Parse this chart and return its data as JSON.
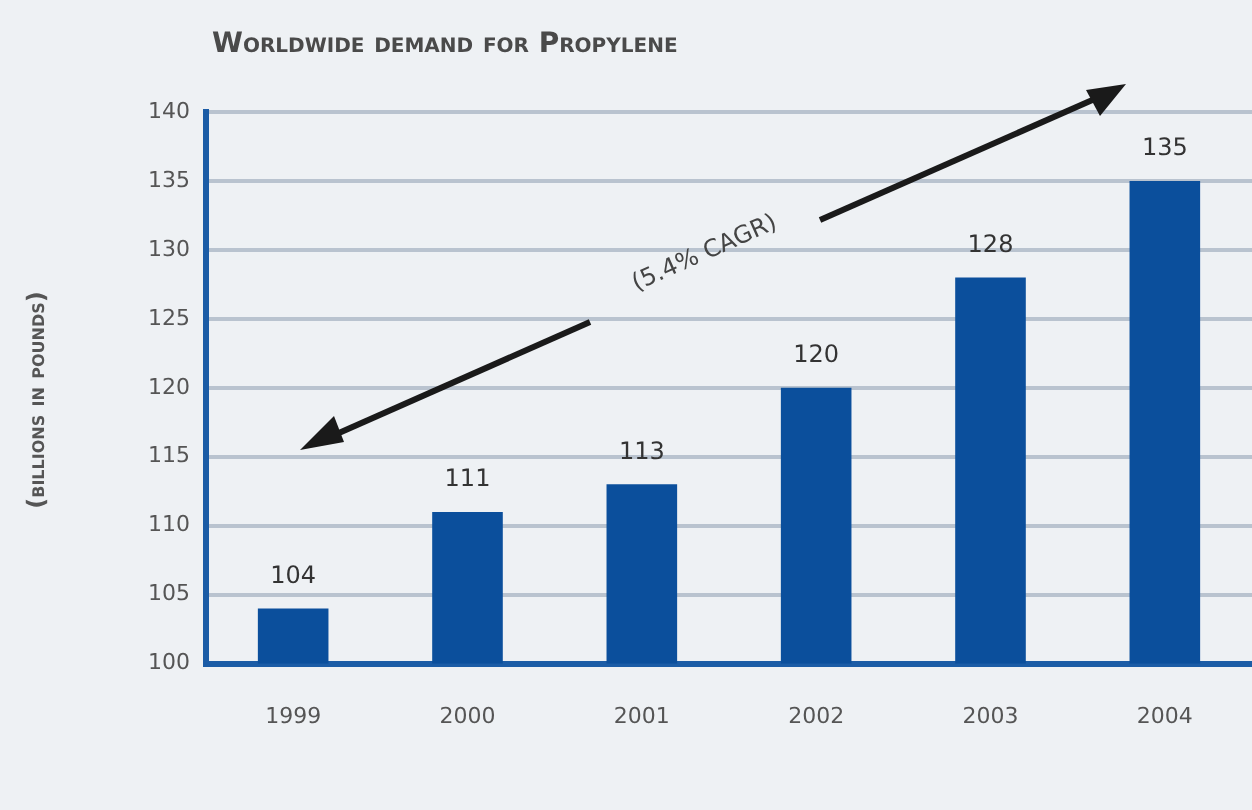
{
  "chart_data": {
    "type": "bar",
    "title": "Worldwide demand for Propylene",
    "ylabel": "(billions in pounds)",
    "categories": [
      "1999",
      "2000",
      "2001",
      "2002",
      "2003",
      "2004"
    ],
    "values": [
      104,
      111,
      113,
      120,
      128,
      135
    ],
    "color": "#0b4f9c",
    "data_labels": true,
    "ylim": [
      100,
      140
    ],
    "yticks": [
      100,
      105,
      110,
      115,
      120,
      125,
      130,
      135,
      140
    ],
    "grid": "y",
    "annotations": [
      "(5.4% CAGR)"
    ]
  }
}
